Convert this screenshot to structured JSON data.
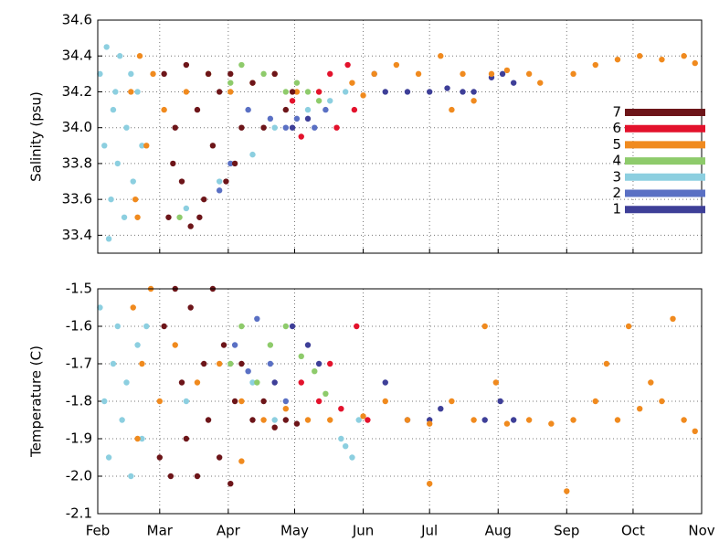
{
  "chart_data": [
    {
      "type": "scatter",
      "ylabel": "Salinity (psu)",
      "xlim": [
        0,
        273
      ],
      "ylim": [
        33.3,
        34.6
      ],
      "yticks": [
        34.6,
        34.4,
        34.2,
        {
          "value": 34,
          "label": "34.0"
        },
        33.8,
        33.6,
        33.4
      ],
      "grid": true,
      "legend": "right",
      "series": [
        {
          "name": "7",
          "color": "#6d1519",
          "x": [
            30,
            32,
            35,
            38,
            40,
            42,
            45,
            48,
            50,
            52,
            55,
            58,
            60,
            62,
            65,
            70,
            75,
            80,
            85,
            88,
            34,
            46
          ],
          "values": [
            34.3,
            33.5,
            34.0,
            33.7,
            34.35,
            33.45,
            34.1,
            33.6,
            34.3,
            33.9,
            34.2,
            33.7,
            34.3,
            33.8,
            34.0,
            34.25,
            34.0,
            34.3,
            34.1,
            34.2,
            33.8,
            33.5
          ]
        },
        {
          "name": "6",
          "color": "#e3122c",
          "x": [
            88,
            92,
            100,
            105,
            108,
            113,
            116
          ],
          "values": [
            34.15,
            33.95,
            34.2,
            34.3,
            34.0,
            34.35,
            34.1
          ]
        },
        {
          "name": "5",
          "color": "#f08a1e",
          "x": [
            15,
            17,
            19,
            22,
            25,
            30,
            40,
            50,
            60,
            70,
            80,
            90,
            100,
            115,
            125,
            135,
            145,
            155,
            165,
            170,
            178,
            185,
            195,
            200,
            215,
            225,
            235,
            245,
            255,
            265,
            270,
            160,
            120,
            18
          ],
          "values": [
            34.2,
            33.6,
            34.4,
            33.9,
            34.3,
            34.1,
            34.2,
            34.3,
            34.2,
            34.25,
            34.3,
            34.2,
            34.2,
            34.25,
            34.3,
            34.35,
            34.3,
            34.4,
            34.3,
            34.15,
            34.3,
            34.32,
            34.3,
            34.25,
            34.3,
            34.35,
            34.38,
            34.4,
            34.38,
            34.4,
            34.36,
            34.1,
            34.18,
            33.5
          ]
        },
        {
          "name": "4",
          "color": "#8ecb6b",
          "x": [
            50,
            60,
            75,
            85,
            90,
            95,
            100,
            37,
            65
          ],
          "values": [
            34.3,
            34.25,
            34.3,
            34.2,
            34.25,
            34.2,
            34.15,
            33.5,
            34.35
          ]
        },
        {
          "name": "3",
          "color": "#8ccfe0",
          "x": [
            1,
            3,
            4,
            6,
            7,
            9,
            10,
            12,
            13,
            15,
            16,
            18,
            5,
            20,
            8,
            40,
            55,
            70,
            80,
            95,
            105,
            112
          ],
          "values": [
            34.3,
            33.9,
            34.45,
            33.6,
            34.1,
            33.8,
            34.4,
            33.5,
            34.0,
            34.3,
            33.7,
            34.2,
            33.38,
            33.9,
            34.2,
            33.55,
            33.7,
            33.85,
            34.0,
            34.1,
            34.15,
            34.2
          ]
        },
        {
          "name": "2",
          "color": "#5a70c4",
          "x": [
            55,
            60,
            68,
            78,
            85,
            90,
            98,
            103
          ],
          "values": [
            33.65,
            33.8,
            34.1,
            34.05,
            34.0,
            34.05,
            34.0,
            34.1
          ]
        },
        {
          "name": "1",
          "color": "#3e3f98",
          "x": [
            88,
            95,
            125,
            130,
            140,
            150,
            158,
            165,
            170,
            178,
            183,
            188
          ],
          "values": [
            34.0,
            34.05,
            34.3,
            34.2,
            34.2,
            34.2,
            34.22,
            34.2,
            34.2,
            34.28,
            34.3,
            34.25
          ]
        }
      ]
    },
    {
      "type": "scatter",
      "ylabel": "Temperature (C)",
      "xlim": [
        0,
        273
      ],
      "ylim": [
        -2.1,
        -1.5
      ],
      "xticks": [
        {
          "value": 0,
          "label": "Feb"
        },
        {
          "value": 28,
          "label": "Mar"
        },
        {
          "value": 59,
          "label": "Apr"
        },
        {
          "value": 89,
          "label": "May"
        },
        {
          "value": 120,
          "label": "Jun"
        },
        {
          "value": 150,
          "label": "Jul"
        },
        {
          "value": 181,
          "label": "Aug"
        },
        {
          "value": 212,
          "label": "Sep"
        },
        {
          "value": 242,
          "label": "Oct"
        },
        {
          "value": 273,
          "label": "Nov"
        }
      ],
      "yticks": [
        -1.5,
        -1.6,
        -1.7,
        -1.8,
        -1.9,
        {
          "value": -2,
          "label": "-2.0"
        },
        -2.1
      ],
      "grid": true,
      "series": [
        {
          "name": "7",
          "color": "#6d1519",
          "x": [
            28,
            30,
            33,
            35,
            38,
            40,
            42,
            45,
            48,
            50,
            52,
            55,
            57,
            60,
            62,
            65,
            70,
            75,
            80,
            85,
            90
          ],
          "values": [
            -1.95,
            -1.6,
            -2.0,
            -1.5,
            -1.75,
            -1.9,
            -1.55,
            -2.0,
            -1.7,
            -1.85,
            -1.5,
            -1.95,
            -1.65,
            -2.02,
            -1.8,
            -1.7,
            -1.85,
            -1.8,
            -1.87,
            -1.85,
            -1.86
          ]
        },
        {
          "name": "6",
          "color": "#e3122c",
          "x": [
            92,
            100,
            105,
            110,
            117,
            122
          ],
          "values": [
            -1.75,
            -1.8,
            -1.7,
            -1.82,
            -1.6,
            -1.85
          ]
        },
        {
          "name": "5",
          "color": "#f08a1e",
          "x": [
            16,
            18,
            20,
            24,
            28,
            35,
            45,
            55,
            65,
            75,
            85,
            95,
            105,
            120,
            130,
            140,
            150,
            160,
            170,
            175,
            180,
            185,
            195,
            205,
            212,
            215,
            225,
            230,
            235,
            240,
            245,
            250,
            255,
            260,
            265,
            270,
            150,
            65
          ],
          "values": [
            -1.55,
            -1.9,
            -1.7,
            -1.5,
            -1.8,
            -1.65,
            -1.75,
            -1.7,
            -1.8,
            -1.85,
            -1.82,
            -1.85,
            -1.85,
            -1.84,
            -1.8,
            -1.85,
            -1.86,
            -1.8,
            -1.85,
            -1.6,
            -1.75,
            -1.86,
            -1.85,
            -1.86,
            -2.04,
            -1.85,
            -1.8,
            -1.7,
            -1.85,
            -1.6,
            -1.82,
            -1.75,
            -1.8,
            -1.58,
            -1.85,
            -1.88,
            -2.02,
            -1.96
          ]
        },
        {
          "name": "4",
          "color": "#8ecb6b",
          "x": [
            60,
            65,
            72,
            78,
            85,
            92,
            98,
            103
          ],
          "values": [
            -1.7,
            -1.6,
            -1.75,
            -1.65,
            -1.6,
            -1.68,
            -1.72,
            -1.78
          ]
        },
        {
          "name": "3",
          "color": "#8ccfe0",
          "x": [
            1,
            3,
            5,
            7,
            9,
            11,
            13,
            15,
            18,
            20,
            22,
            40,
            70,
            80,
            110,
            115,
            118,
            112
          ],
          "values": [
            -1.55,
            -1.8,
            -1.95,
            -1.7,
            -1.6,
            -1.85,
            -1.75,
            -2.0,
            -1.65,
            -1.9,
            -1.6,
            -1.8,
            -1.75,
            -1.85,
            -1.9,
            -1.95,
            -1.85,
            -1.92
          ]
        },
        {
          "name": "2",
          "color": "#5a70c4",
          "x": [
            62,
            68,
            72,
            78,
            85
          ],
          "values": [
            -1.65,
            -1.72,
            -1.58,
            -1.7,
            -1.8
          ]
        },
        {
          "name": "1",
          "color": "#3e3f98",
          "x": [
            80,
            88,
            95,
            100,
            130,
            140,
            150,
            155,
            175,
            182,
            188
          ],
          "values": [
            -1.75,
            -1.6,
            -1.65,
            -1.7,
            -1.75,
            -1.85,
            -1.85,
            -1.82,
            -1.85,
            -1.8,
            -1.85
          ]
        }
      ]
    }
  ]
}
